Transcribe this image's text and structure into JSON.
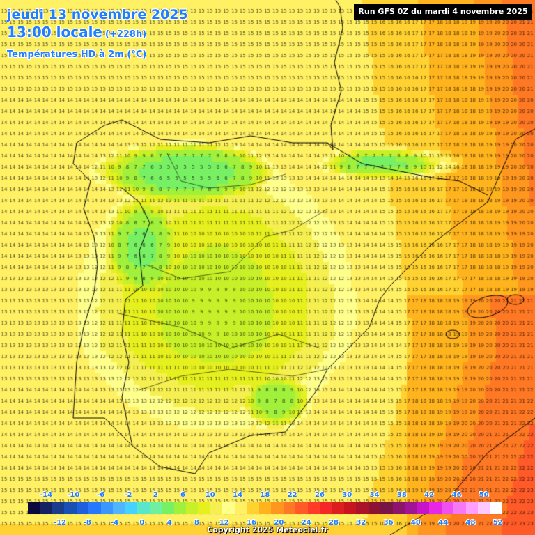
{
  "title": {
    "date": "jeudi 13 novembre 2025",
    "time": "13:00 locale",
    "offset": "(+228h)",
    "parameter": "Températures HD à 2m (°C)"
  },
  "run_banner": "Run GFS 0Z du mardi 4 novembre 2025",
  "copyright": "Copyright 2025 Meteociel.fr",
  "legend": {
    "top_labels": [
      "-14",
      "-10",
      "-6",
      "-2",
      "2",
      "6",
      "10",
      "14",
      "18",
      "22",
      "26",
      "30",
      "34",
      "38",
      "42",
      "46",
      "50"
    ],
    "bottom_labels": [
      "-12",
      "-8",
      "-4",
      "0",
      "4",
      "8",
      "12",
      "16",
      "20",
      "24",
      "28",
      "32",
      "36",
      "40",
      "44",
      "48",
      "52"
    ],
    "colors": [
      "#0a0a3c",
      "#142264",
      "#1a3c8c",
      "#1a4fb4",
      "#1e5fdc",
      "#2878ff",
      "#3c96ff",
      "#50b4ff",
      "#46d2ff",
      "#5ae6c8",
      "#6ef0a0",
      "#78f064",
      "#a0f03c",
      "#c8f028",
      "#e6f01e",
      "#f5f050",
      "#ffff8c",
      "#fff064",
      "#ffd232",
      "#ffb41e",
      "#ff961e",
      "#ff7823",
      "#ff5a28",
      "#ff3c28",
      "#f52828",
      "#dc1e1e",
      "#c8141e",
      "#aa1428",
      "#8c1432",
      "#781446",
      "#8c146e",
      "#a01496",
      "#c814c8",
      "#e628e6",
      "#f050f0",
      "#f578f5",
      "#ffa0ff",
      "#ffc8ff",
      "#ffffff"
    ]
  }
}
